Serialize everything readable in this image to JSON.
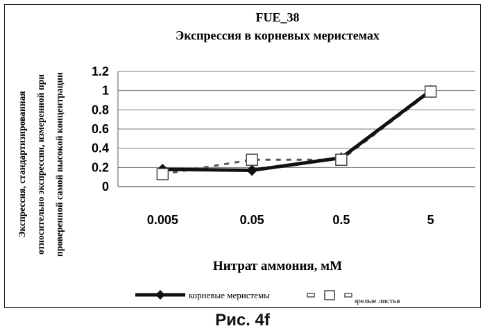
{
  "caption": "Рис. 4f",
  "chart_data": {
    "type": "line",
    "title": "FUE_38",
    "subtitle": "Экспрессия в корневых меристемах",
    "xlabel": "Нитрат аммония, мМ",
    "ylabel_lines": [
      "Экспрессия, стандартизированная",
      "относительно экспрессии, измеренной при",
      "проверенной самой высокой концентрации"
    ],
    "categories": [
      "0.005",
      "0.05",
      "0.5",
      "5"
    ],
    "ylim": [
      0,
      1.2
    ],
    "yticks": [
      "0",
      "0.2",
      "0.4",
      "0.6",
      "0.8",
      "1",
      "1.2"
    ],
    "grid": "horizontal",
    "legend_position": "bottom",
    "series": [
      {
        "name": "корневые меристемы",
        "values": [
          0.18,
          0.17,
          0.3,
          1.0
        ],
        "marker": "diamond",
        "style": "solid",
        "color": "#111111"
      },
      {
        "name": "зрелые листья",
        "values": [
          0.13,
          0.28,
          0.28,
          0.99
        ],
        "marker": "square",
        "style": "dashed",
        "color": "#555555"
      }
    ]
  }
}
